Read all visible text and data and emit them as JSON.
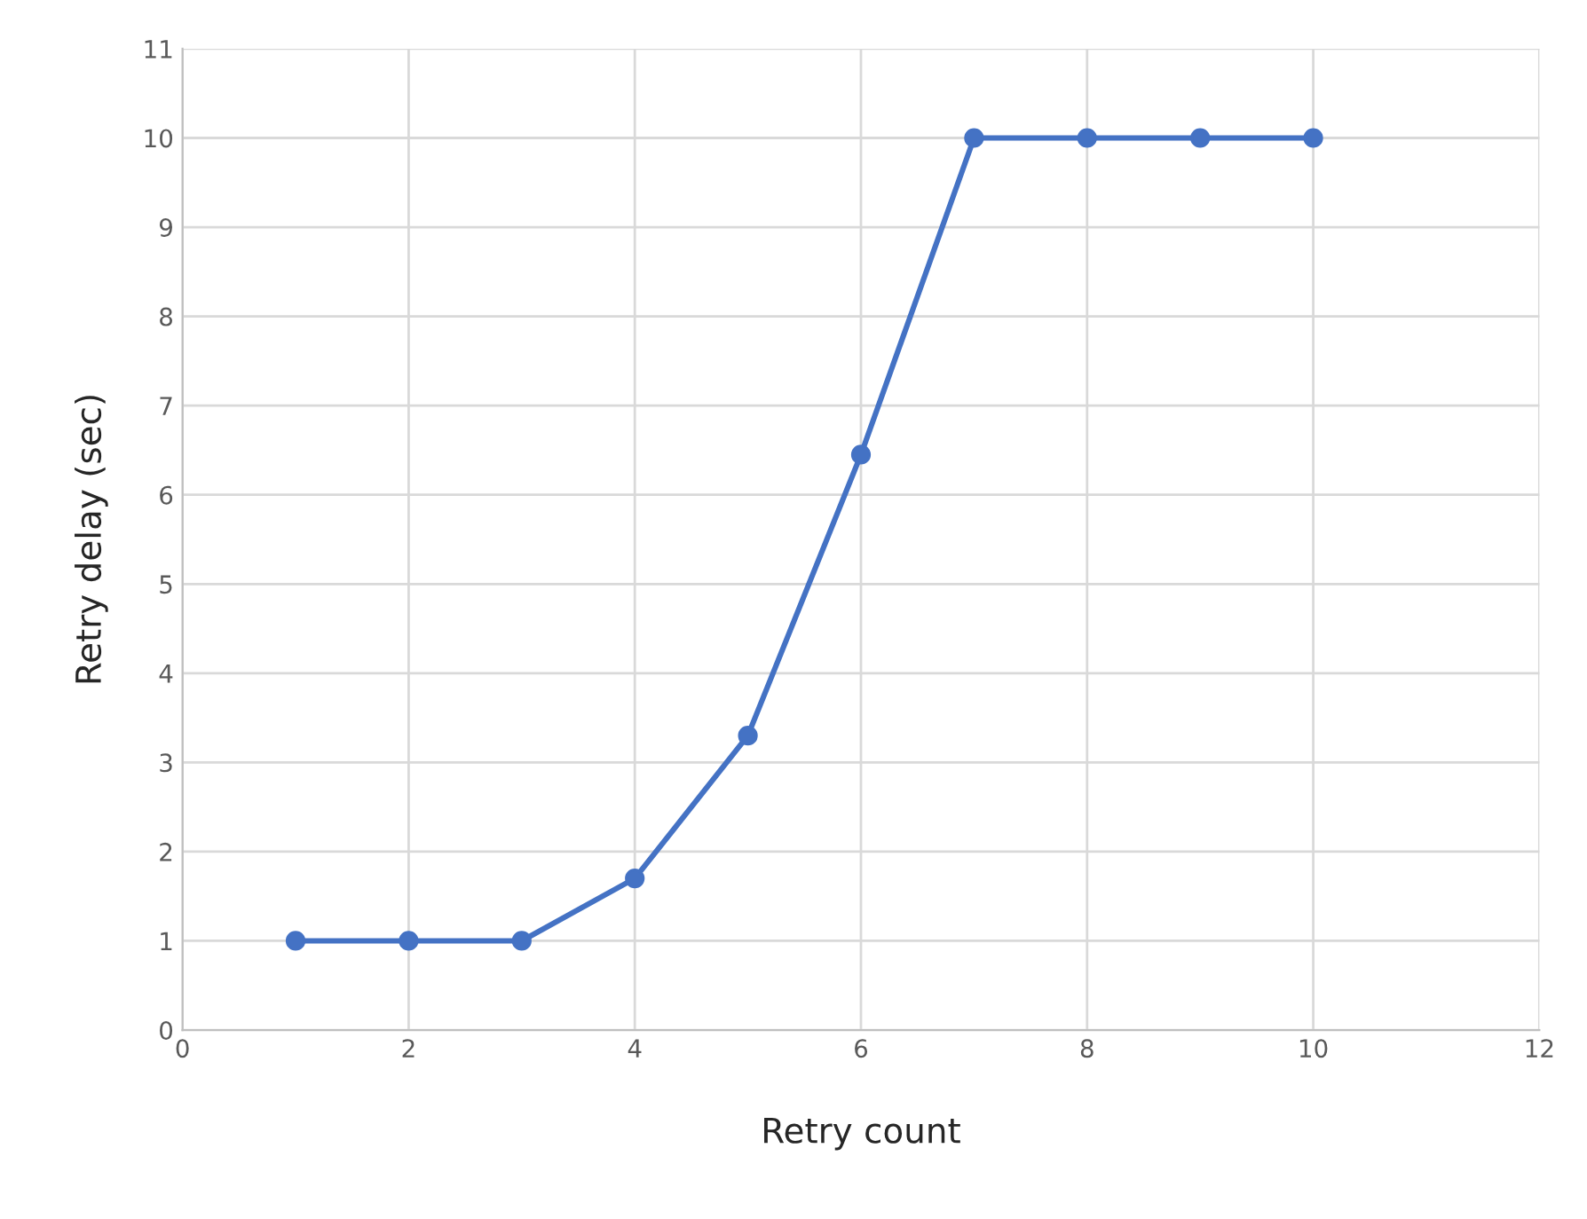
{
  "chart_data": {
    "type": "line",
    "xlabel": "Retry count",
    "ylabel": "Retry delay (sec)",
    "series": [
      {
        "color": "#4472c4",
        "x": [
          1,
          2,
          3,
          4,
          5,
          6,
          7,
          8,
          9,
          10
        ],
        "values": [
          1,
          1,
          1,
          1.7,
          3.3,
          6.45,
          10,
          10,
          10,
          10
        ]
      }
    ],
    "xlim": [
      0,
      12
    ],
    "xticks": [
      0,
      2,
      4,
      6,
      8,
      10,
      12
    ],
    "ylim": [
      0,
      11
    ],
    "yticks": [
      0,
      1,
      2,
      3,
      4,
      5,
      6,
      7,
      8,
      9,
      10,
      11
    ],
    "grid": true,
    "marker": "circle",
    "line_style": "solid"
  }
}
